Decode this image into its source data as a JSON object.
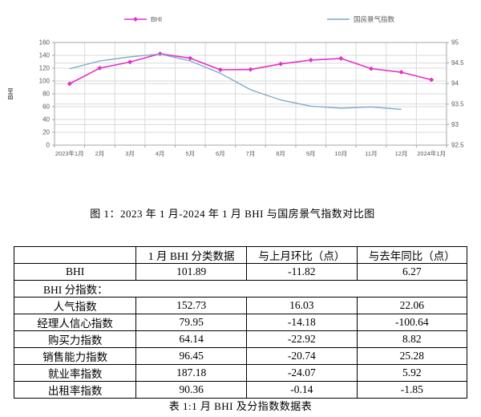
{
  "figure_caption": "图 1：2023 年 1 月-2024 年 1 月 BHI 与国房景气指数对比图",
  "colors": {
    "bhi_line": "#e333c6",
    "climate_line": "#7ba7c7",
    "gridline": "#d9d9d9",
    "axis": "#a6a6a6",
    "tick_text": "#595959"
  },
  "chart_data": {
    "type": "line",
    "title": "",
    "categories": [
      "2023年1月",
      "2月",
      "3月",
      "4月",
      "5月",
      "6月",
      "7月",
      "8月",
      "9月",
      "10月",
      "11月",
      "12月",
      "2024年1月"
    ],
    "left_axis": {
      "label": "BHI",
      "min": 0,
      "max": 160,
      "step": 20
    },
    "right_axis": {
      "label": "",
      "min": 92.5,
      "max": 95,
      "step": 0.5
    },
    "grid": true,
    "legend_position": "top",
    "series": [
      {
        "name": "BHI",
        "axis": "left",
        "marker": "diamond",
        "values": [
          95.62,
          120.1,
          129.5,
          142.5,
          135.5,
          117.5,
          117.9,
          126.6,
          132.6,
          135.1,
          119.2,
          113.71,
          101.89
        ]
      },
      {
        "name": "国房景气指数",
        "axis": "right",
        "marker": "none",
        "values": [
          94.36,
          94.55,
          94.65,
          94.72,
          94.55,
          94.25,
          93.85,
          93.6,
          93.45,
          93.4,
          93.43,
          93.37,
          null
        ]
      }
    ]
  },
  "legend": [
    {
      "label": "BHI"
    },
    {
      "label": "国房景气指数"
    }
  ],
  "table": {
    "headers": [
      "",
      "1 月 BHI 分类数据",
      "与上月环比（点）",
      "与去年同比（点）"
    ],
    "rows": [
      {
        "cells": [
          "BHI",
          "101.89",
          "-11.82",
          "6.27"
        ]
      },
      {
        "cells": [
          "BHI 分指数："
        ],
        "span": true
      },
      {
        "cells": [
          "人气指数",
          "152.73",
          "16.03",
          "22.06"
        ]
      },
      {
        "cells": [
          "经理人信心指数",
          "79.95",
          "-14.18",
          "-100.64"
        ]
      },
      {
        "cells": [
          "购买力指数",
          "64.14",
          "-22.92",
          "8.82"
        ]
      },
      {
        "cells": [
          "销售能力指数",
          "96.45",
          "-20.74",
          "25.28"
        ]
      },
      {
        "cells": [
          "就业率指数",
          "187.18",
          "-24.07",
          "5.92"
        ]
      },
      {
        "cells": [
          "出租率指数",
          "90.36",
          "-0.14",
          "-1.85"
        ]
      }
    ],
    "caption": "表 1:1 月 BHI 及分指数数据表"
  }
}
